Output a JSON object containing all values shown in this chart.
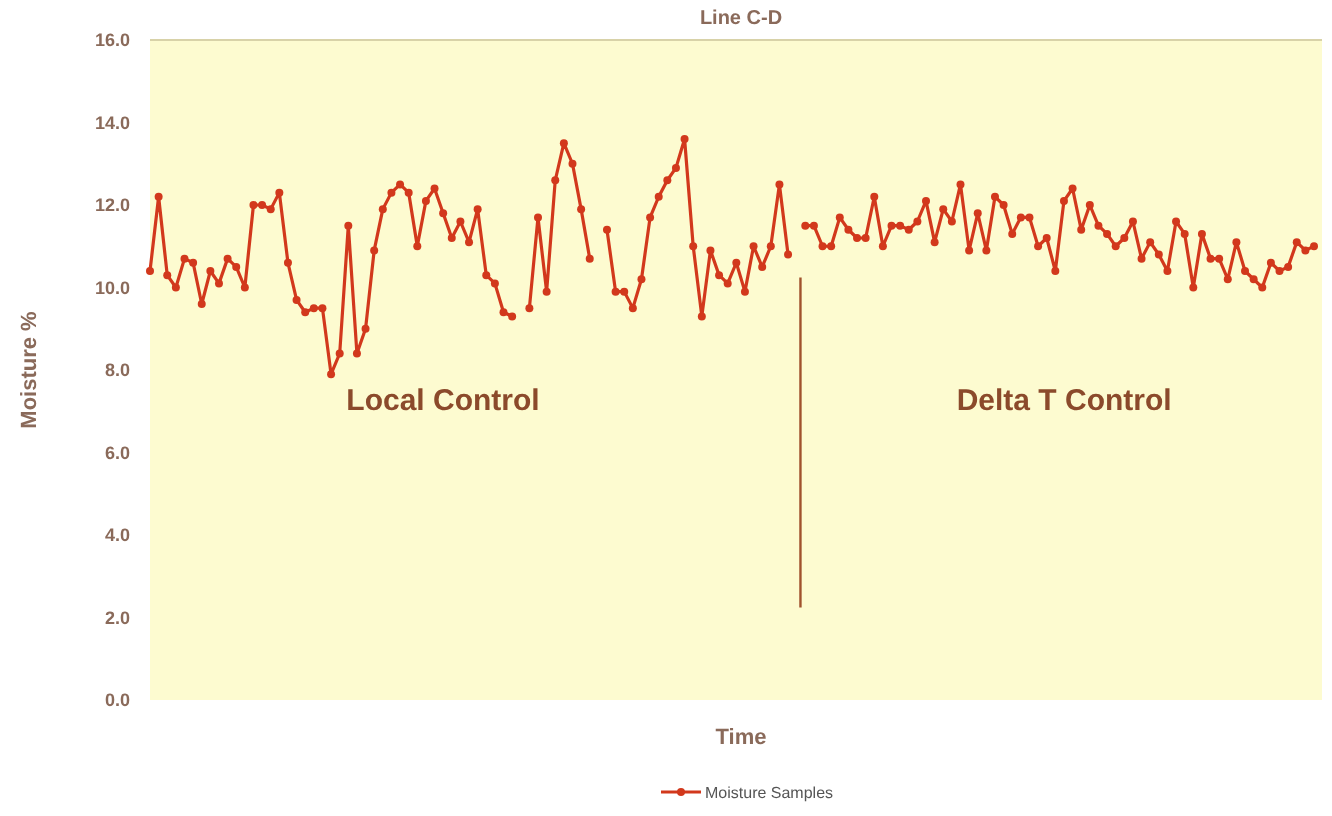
{
  "chart_data": {
    "type": "line",
    "title": "Line C-D",
    "xlabel": "Time",
    "ylabel": "Moisture %",
    "categories": [
      null,
      null,
      null,
      null,
      null,
      null,
      null,
      null,
      null,
      null,
      null,
      null,
      null,
      null,
      null,
      null,
      null,
      null,
      null,
      null,
      null,
      null,
      null,
      null,
      null,
      null,
      null,
      null,
      null,
      null,
      null,
      null,
      null,
      null,
      null,
      null,
      null,
      null,
      null,
      null,
      null,
      null,
      null,
      null,
      null,
      null,
      null,
      null,
      null,
      null,
      null,
      null,
      null,
      null,
      null,
      null,
      null,
      null,
      null,
      null,
      null,
      null,
      null,
      null,
      null,
      null,
      null,
      null,
      null,
      null,
      null,
      null,
      null,
      null,
      null,
      null,
      null,
      null,
      null,
      null,
      null,
      null,
      null,
      null,
      null,
      null,
      null,
      null,
      null,
      null,
      null,
      null,
      null,
      null,
      null,
      null,
      null,
      null,
      null,
      null,
      null,
      null,
      null,
      null,
      null,
      null,
      null,
      null,
      null,
      null,
      null,
      null,
      null,
      null,
      null,
      null,
      null,
      null,
      null,
      null,
      null,
      null,
      null,
      null,
      null,
      null,
      null,
      null,
      null,
      null,
      null,
      null,
      null,
      null,
      null,
      null
    ],
    "series": [
      {
        "name": "Moisture Samples",
        "color": "#d2381c",
        "values": [
          10.4,
          12.2,
          10.3,
          10.0,
          10.7,
          10.6,
          9.6,
          10.4,
          10.1,
          10.7,
          10.5,
          10.0,
          12.0,
          12.0,
          11.9,
          12.3,
          10.6,
          9.7,
          9.4,
          9.5,
          9.5,
          7.9,
          8.4,
          11.5,
          8.4,
          9.0,
          10.9,
          11.9,
          12.3,
          12.5,
          12.3,
          11.0,
          12.1,
          12.4,
          11.8,
          11.2,
          11.6,
          11.1,
          11.9,
          10.3,
          10.1,
          9.4,
          9.3,
          null,
          9.5,
          11.7,
          9.9,
          12.6,
          13.5,
          13.0,
          11.9,
          10.7,
          null,
          11.4,
          9.9,
          9.9,
          9.5,
          10.2,
          11.7,
          12.2,
          12.6,
          12.9,
          13.6,
          11.0,
          9.3,
          10.9,
          10.3,
          10.1,
          10.6,
          9.9,
          11.0,
          10.5,
          11.0,
          12.5,
          10.8,
          null,
          11.5,
          11.5,
          11.0,
          11.0,
          11.7,
          11.4,
          11.2,
          11.2,
          12.2,
          11.0,
          11.5,
          11.5,
          11.4,
          11.6,
          12.1,
          11.1,
          11.9,
          11.6,
          12.5,
          10.9,
          11.8,
          10.9,
          12.2,
          12.0,
          11.3,
          11.7,
          11.7,
          11.0,
          11.2,
          10.4,
          12.1,
          12.4,
          11.4,
          12.0,
          11.5,
          11.3,
          11.0,
          11.2,
          11.6,
          10.7,
          11.1,
          10.8,
          10.4,
          11.6,
          11.3,
          10.0,
          11.3,
          10.7,
          10.7,
          10.2,
          11.1,
          10.4,
          10.2,
          10.0,
          10.6,
          10.4,
          10.5,
          11.1,
          10.9,
          11.0
        ]
      }
    ],
    "ylim": [
      0,
      16
    ],
    "yticks": [
      {
        "value": 0,
        "label": "0.0"
      },
      {
        "value": 2,
        "label": "2.0"
      },
      {
        "value": 4,
        "label": "4.0"
      },
      {
        "value": 6,
        "label": "6.0"
      },
      {
        "value": 8,
        "label": "8.0"
      },
      {
        "value": 10,
        "label": "10.0"
      },
      {
        "value": 12,
        "label": "12.0"
      },
      {
        "value": 14,
        "label": "14.0"
      },
      {
        "value": 16,
        "label": "16.0"
      }
    ],
    "annotations": [
      "Local Control",
      "Delta T Control"
    ],
    "marker": "circle",
    "line_style": "solid",
    "legend": "bottom",
    "grid": false
  }
}
